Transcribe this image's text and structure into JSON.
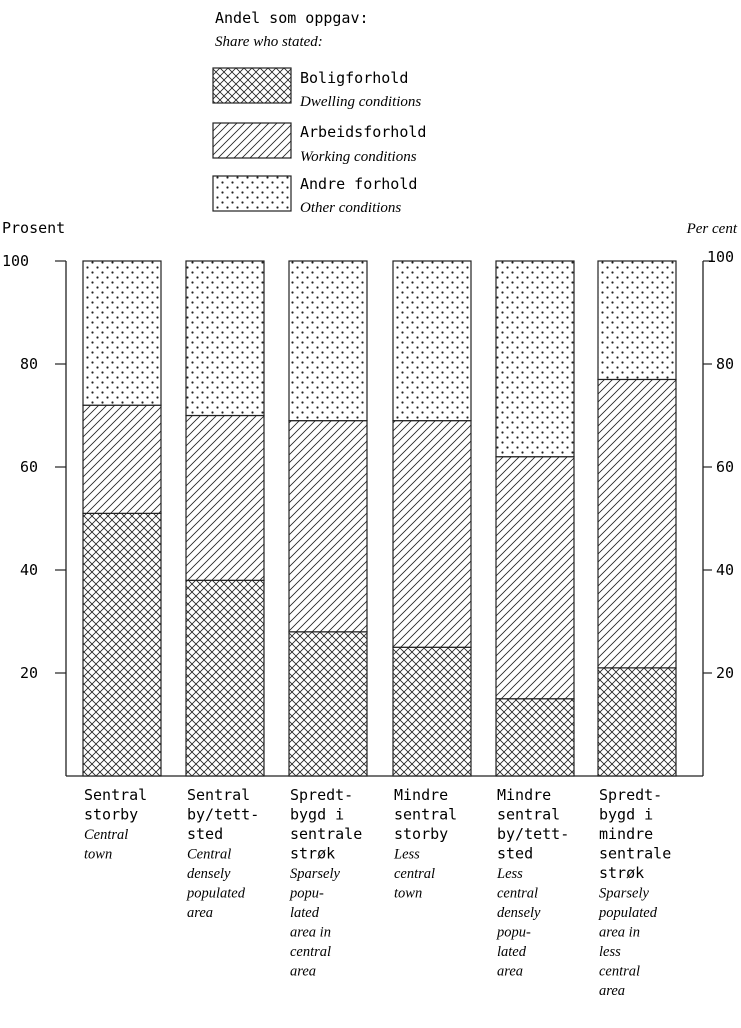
{
  "legend": {
    "heading_no": "Andel som oppgav:",
    "heading_en": "Share who stated:",
    "items": [
      {
        "pattern": "crosshatch",
        "label_no": "Boligforhold",
        "label_en": "Dwelling conditions"
      },
      {
        "pattern": "diagonal",
        "label_no": "Arbeidsforhold",
        "label_en": "Working conditions"
      },
      {
        "pattern": "dots",
        "label_no": "Andre forhold",
        "label_en": "Other conditions"
      }
    ]
  },
  "axis": {
    "left_title": "Prosent",
    "right_title": "Per cent",
    "ticks_left": [
      "100",
      "80",
      "60",
      "40",
      "20"
    ],
    "ticks_right": [
      "100",
      "80",
      "60",
      "40",
      "20"
    ]
  },
  "chart_data": {
    "type": "bar",
    "stacked": true,
    "ylim": [
      0,
      100
    ],
    "yticks": [
      20,
      40,
      60,
      80,
      100
    ],
    "categories": [
      {
        "no": [
          "Sentral",
          "storby"
        ],
        "en": [
          "Central",
          "town"
        ]
      },
      {
        "no": [
          "Sentral",
          "by/tett-",
          "sted"
        ],
        "en": [
          "Central",
          "densely",
          "populated",
          "area"
        ]
      },
      {
        "no": [
          "Spredt-",
          "bygd i",
          "sentrale",
          "strøk"
        ],
        "en": [
          "Sparsely",
          "popu-",
          "lated",
          "area in",
          "central",
          "area"
        ]
      },
      {
        "no": [
          "Mindre",
          "sentral",
          "storby"
        ],
        "en": [
          "Less",
          "central",
          "town"
        ]
      },
      {
        "no": [
          "Mindre",
          "sentral",
          "by/tett-",
          "sted"
        ],
        "en": [
          "Less",
          "central",
          "densely",
          "popu-",
          "lated",
          "area"
        ]
      },
      {
        "no": [
          "Spredt-",
          "bygd i",
          "mindre",
          "sentrale",
          "strøk"
        ],
        "en": [
          "Sparsely",
          "populated",
          "area in",
          "less",
          "central",
          "area"
        ]
      }
    ],
    "series": [
      {
        "name": "Boligforhold",
        "pattern": "crosshatch",
        "values": [
          51,
          38,
          28,
          25,
          15,
          21
        ]
      },
      {
        "name": "Arbeidsforhold",
        "pattern": "diagonal",
        "values": [
          21,
          32,
          41,
          44,
          47,
          56
        ]
      },
      {
        "name": "Andre forhold",
        "pattern": "dots",
        "values": [
          28,
          30,
          31,
          31,
          38,
          23
        ]
      }
    ]
  }
}
